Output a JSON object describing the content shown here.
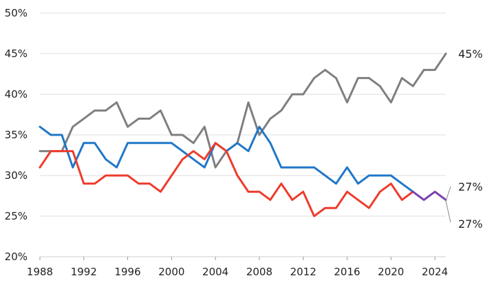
{
  "chart_data": {
    "type": "line",
    "title": "",
    "xlabel": "",
    "ylabel": "",
    "xlim": [
      1988,
      2025
    ],
    "ylim": [
      20,
      50
    ],
    "y_ticks": [
      "20%",
      "25%",
      "30%",
      "35%",
      "40%",
      "45%",
      "50%"
    ],
    "y_tick_values": [
      20,
      25,
      30,
      35,
      40,
      45,
      50
    ],
    "x_ticks": [
      "1988",
      "1992",
      "1996",
      "2000",
      "2004",
      "2008",
      "2012",
      "2016",
      "2020",
      "2024"
    ],
    "x_tick_values": [
      1988,
      1992,
      1996,
      2000,
      2004,
      2008,
      2012,
      2016,
      2020,
      2024
    ],
    "grid": "horizontal",
    "legend": "none",
    "x": [
      1988,
      1989,
      1990,
      1991,
      1992,
      1993,
      1994,
      1995,
      1996,
      1997,
      1998,
      1999,
      2000,
      2001,
      2002,
      2003,
      2004,
      2005,
      2006,
      2007,
      2008,
      2009,
      2010,
      2011,
      2012,
      2013,
      2014,
      2015,
      2016,
      2017,
      2018,
      2019,
      2020,
      2021,
      2022,
      2023,
      2024,
      2025
    ],
    "series": [
      {
        "color": "#7f7f7f",
        "values": [
          33,
          33,
          33,
          36,
          37,
          38,
          38,
          39,
          36,
          37,
          37,
          38,
          35,
          35,
          34,
          36,
          31,
          33,
          34,
          39,
          35,
          37,
          38,
          40,
          40,
          42,
          43,
          42,
          39,
          42,
          42,
          41,
          39,
          42,
          41,
          43,
          43,
          45
        ]
      },
      {
        "color": "#1f77c8",
        "values": [
          36,
          35,
          35,
          31,
          34,
          34,
          32,
          31,
          34,
          34,
          34,
          34,
          34,
          33,
          32,
          31,
          34,
          33,
          34,
          33,
          36,
          34,
          31,
          31,
          31,
          31,
          30,
          29,
          31,
          29,
          30,
          30,
          30,
          29,
          28,
          null,
          null,
          null
        ]
      },
      {
        "color": "#ee3b2b",
        "values": [
          31,
          33,
          33,
          33,
          29,
          29,
          30,
          30,
          30,
          29,
          29,
          28,
          30,
          32,
          33,
          32,
          34,
          33,
          30,
          28,
          28,
          27,
          29,
          27,
          28,
          25,
          26,
          26,
          28,
          27,
          26,
          28,
          29,
          27,
          28,
          null,
          null,
          null
        ]
      },
      {
        "color": "#7a3fb0",
        "values": [
          null,
          null,
          null,
          null,
          null,
          null,
          null,
          null,
          null,
          null,
          null,
          null,
          null,
          null,
          null,
          null,
          null,
          null,
          null,
          null,
          null,
          null,
          null,
          null,
          null,
          null,
          null,
          null,
          null,
          null,
          null,
          null,
          null,
          null,
          28,
          27,
          28,
          27
        ]
      }
    ],
    "annotations": [
      {
        "text": "45%",
        "x": 2025,
        "y": 45,
        "target": "gray-end"
      },
      {
        "text": "27%",
        "x": 2025,
        "y": 27,
        "target": "upper-bracket"
      },
      {
        "text": "27%",
        "x": 2025,
        "y": 27,
        "target": "lower-bracket"
      }
    ]
  }
}
